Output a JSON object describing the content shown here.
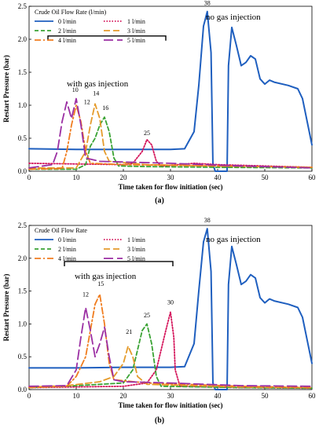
{
  "chart_data": [
    {
      "type": "line",
      "panel_label": "(a)",
      "legend_title": "Crude Oil Flow Rate (l/min)",
      "xlabel": "Time taken for flow initiation (sec)",
      "ylabel": "Restart Pressure (bar)",
      "xlim": [
        0,
        60
      ],
      "ylim": [
        0,
        2.5
      ],
      "xticks": [
        "0",
        "10",
        "20",
        "30",
        "40",
        "50",
        "60"
      ],
      "yticks": [
        "0.0",
        "0.5",
        "1.0",
        "1.5",
        "2.0",
        "2.5"
      ],
      "grid": false,
      "legend_position": "top-left",
      "annotations": {
        "no_gas": "no gas injection",
        "with_gas": "with gas injection"
      },
      "peak_labels": [
        {
          "text": "38",
          "x": 37.8,
          "y": 2.52
        },
        {
          "text": "10",
          "x": 9.8,
          "y": 1.2
        },
        {
          "text": "12",
          "x": 12.3,
          "y": 1.02
        },
        {
          "text": "14",
          "x": 14.2,
          "y": 1.15
        },
        {
          "text": "16",
          "x": 16.2,
          "y": 0.93
        },
        {
          "text": "25",
          "x": 25.0,
          "y": 0.55
        }
      ],
      "series": [
        {
          "name": "0 l/min",
          "color": "#1f5fbf",
          "dash": "solid",
          "points": [
            [
              0,
              0.34
            ],
            [
              10,
              0.33
            ],
            [
              20,
              0.33
            ],
            [
              30,
              0.33
            ],
            [
              33,
              0.34
            ],
            [
              35,
              0.6
            ],
            [
              36,
              1.3
            ],
            [
              37,
              2.2
            ],
            [
              37.8,
              2.42
            ],
            [
              38.6,
              1.8
            ],
            [
              39,
              0.1
            ],
            [
              39.5,
              0.0
            ],
            [
              42,
              0.0
            ],
            [
              42.3,
              1.6
            ],
            [
              43,
              2.18
            ],
            [
              44,
              1.9
            ],
            [
              45,
              1.6
            ],
            [
              46,
              1.65
            ],
            [
              47,
              1.75
            ],
            [
              48,
              1.7
            ],
            [
              49,
              1.4
            ],
            [
              50,
              1.32
            ],
            [
              51,
              1.38
            ],
            [
              52,
              1.35
            ],
            [
              55,
              1.3
            ],
            [
              57,
              1.25
            ],
            [
              58,
              1.1
            ],
            [
              59,
              0.75
            ],
            [
              60,
              0.4
            ]
          ]
        },
        {
          "name": "1 l/min",
          "color": "#d4145a",
          "dash": "dot",
          "points": [
            [
              0,
              0.12
            ],
            [
              20,
              0.1
            ],
            [
              22,
              0.12
            ],
            [
              24,
              0.3
            ],
            [
              25,
              0.48
            ],
            [
              26,
              0.4
            ],
            [
              27,
              0.15
            ],
            [
              28,
              0.08
            ],
            [
              35,
              0.12
            ],
            [
              40,
              0.1
            ],
            [
              50,
              0.08
            ],
            [
              60,
              0.06
            ]
          ]
        },
        {
          "name": "2 l/min",
          "color": "#3aa334",
          "dash": "dash",
          "points": [
            [
              0,
              0.03
            ],
            [
              10,
              0.03
            ],
            [
              12,
              0.1
            ],
            [
              13,
              0.38
            ],
            [
              14,
              0.5
            ],
            [
              15,
              0.7
            ],
            [
              16,
              0.82
            ],
            [
              17,
              0.6
            ],
            [
              18,
              0.2
            ],
            [
              19,
              0.08
            ],
            [
              25,
              0.07
            ],
            [
              40,
              0.06
            ],
            [
              60,
              0.05
            ]
          ]
        },
        {
          "name": "3 l/min",
          "color": "#e59b2c",
          "dash": "longdash",
          "points": [
            [
              0,
              0.05
            ],
            [
              10,
              0.05
            ],
            [
              12,
              0.3
            ],
            [
              13,
              0.7
            ],
            [
              14,
              1.02
            ],
            [
              15,
              0.8
            ],
            [
              16,
              0.3
            ],
            [
              17,
              0.15
            ],
            [
              25,
              0.1
            ],
            [
              40,
              0.08
            ],
            [
              60,
              0.06
            ]
          ]
        },
        {
          "name": "4 l/min",
          "color": "#f07d20",
          "dash": "dashdot",
          "points": [
            [
              0,
              0.03
            ],
            [
              7,
              0.04
            ],
            [
              8,
              0.3
            ],
            [
              9,
              0.7
            ],
            [
              10,
              1.0
            ],
            [
              11,
              0.75
            ],
            [
              12,
              0.3
            ],
            [
              13,
              0.12
            ],
            [
              20,
              0.1
            ],
            [
              40,
              0.08
            ],
            [
              60,
              0.06
            ]
          ]
        },
        {
          "name": "5 l/min",
          "color": "#9b2fa3",
          "dash": "bigdash",
          "points": [
            [
              0,
              0.05
            ],
            [
              5,
              0.1
            ],
            [
              6,
              0.3
            ],
            [
              7,
              0.75
            ],
            [
              8,
              1.05
            ],
            [
              9,
              0.8
            ],
            [
              10,
              1.1
            ],
            [
              11,
              0.7
            ],
            [
              12,
              0.2
            ],
            [
              15,
              0.15
            ],
            [
              30,
              0.12
            ],
            [
              45,
              0.08
            ],
            [
              60,
              0.05
            ]
          ]
        }
      ]
    },
    {
      "type": "line",
      "panel_label": "(b)",
      "legend_title": "Crude Oil Flow Rate",
      "xlabel": "Time taken for flow initiation (sec)",
      "ylabel": "Restart Pressure (bar)",
      "xlim": [
        0,
        60
      ],
      "ylim": [
        0,
        2.5
      ],
      "xticks": [
        "0",
        "10",
        "20",
        "30",
        "40",
        "50",
        "60"
      ],
      "yticks": [
        "0.0",
        "0.5",
        "1.0",
        "1.5",
        "2.0",
        "2.5"
      ],
      "grid": false,
      "legend_position": "top-left",
      "annotations": {
        "no_gas": "no gas injection",
        "with_gas": "with gas injection"
      },
      "peak_labels": [
        {
          "text": "38",
          "x": 37.8,
          "y": 2.55
        },
        {
          "text": "12",
          "x": 12.0,
          "y": 1.42
        },
        {
          "text": "15",
          "x": 15.2,
          "y": 1.58
        },
        {
          "text": "21",
          "x": 21.2,
          "y": 0.85
        },
        {
          "text": "25",
          "x": 25.0,
          "y": 1.1
        },
        {
          "text": "30",
          "x": 30.0,
          "y": 1.3
        }
      ],
      "series": [
        {
          "name": "0 l/min",
          "color": "#1f5fbf",
          "dash": "solid",
          "points": [
            [
              0,
              0.33
            ],
            [
              10,
              0.33
            ],
            [
              20,
              0.34
            ],
            [
              30,
              0.34
            ],
            [
              33,
              0.35
            ],
            [
              35,
              0.7
            ],
            [
              36,
              1.5
            ],
            [
              37,
              2.25
            ],
            [
              37.8,
              2.45
            ],
            [
              38.6,
              1.8
            ],
            [
              39,
              0.1
            ],
            [
              39.5,
              0.0
            ],
            [
              42,
              0.0
            ],
            [
              42.3,
              1.6
            ],
            [
              43,
              2.18
            ],
            [
              44,
              1.9
            ],
            [
              45,
              1.6
            ],
            [
              46,
              1.65
            ],
            [
              47,
              1.75
            ],
            [
              48,
              1.7
            ],
            [
              49,
              1.4
            ],
            [
              50,
              1.32
            ],
            [
              51,
              1.38
            ],
            [
              52,
              1.35
            ],
            [
              55,
              1.3
            ],
            [
              57,
              1.25
            ],
            [
              58,
              1.1
            ],
            [
              59,
              0.75
            ],
            [
              60,
              0.4
            ]
          ]
        },
        {
          "name": "1 l/min",
          "color": "#d4145a",
          "dash": "dot",
          "points": [
            [
              0,
              0.03
            ],
            [
              20,
              0.05
            ],
            [
              25,
              0.1
            ],
            [
              27,
              0.3
            ],
            [
              28,
              0.6
            ],
            [
              29,
              0.9
            ],
            [
              30,
              1.18
            ],
            [
              30.7,
              0.8
            ],
            [
              31,
              0.3
            ],
            [
              32,
              0.05
            ],
            [
              45,
              0.03
            ],
            [
              60,
              0.02
            ]
          ]
        },
        {
          "name": "2 l/min",
          "color": "#3aa334",
          "dash": "dash",
          "points": [
            [
              0,
              0.03
            ],
            [
              10,
              0.06
            ],
            [
              20,
              0.1
            ],
            [
              22,
              0.3
            ],
            [
              23,
              0.6
            ],
            [
              24,
              0.9
            ],
            [
              25,
              1.0
            ],
            [
              26,
              0.7
            ],
            [
              27,
              0.2
            ],
            [
              28,
              0.05
            ],
            [
              45,
              0.03
            ],
            [
              60,
              0.02
            ]
          ]
        },
        {
          "name": "3 l/min",
          "color": "#e59b2c",
          "dash": "longdash",
          "points": [
            [
              0,
              0.04
            ],
            [
              8,
              0.06
            ],
            [
              15,
              0.12
            ],
            [
              18,
              0.2
            ],
            [
              20,
              0.4
            ],
            [
              21,
              0.66
            ],
            [
              22,
              0.5
            ],
            [
              23,
              0.2
            ],
            [
              25,
              0.08
            ],
            [
              45,
              0.04
            ],
            [
              60,
              0.03
            ]
          ]
        },
        {
          "name": "4 l/min",
          "color": "#f07d20",
          "dash": "dashdot",
          "points": [
            [
              0,
              0.03
            ],
            [
              8,
              0.05
            ],
            [
              10,
              0.2
            ],
            [
              12,
              0.5
            ],
            [
              13,
              0.9
            ],
            [
              14,
              1.3
            ],
            [
              15,
              1.45
            ],
            [
              16,
              1.0
            ],
            [
              17,
              0.4
            ],
            [
              18,
              0.15
            ],
            [
              25,
              0.1
            ],
            [
              45,
              0.05
            ],
            [
              60,
              0.03
            ]
          ]
        },
        {
          "name": "5 l/min",
          "color": "#9b2fa3",
          "dash": "bigdash",
          "points": [
            [
              0,
              0.05
            ],
            [
              8,
              0.06
            ],
            [
              10,
              0.3
            ],
            [
              11,
              0.8
            ],
            [
              12,
              1.25
            ],
            [
              13,
              0.9
            ],
            [
              14,
              0.5
            ],
            [
              15,
              0.7
            ],
            [
              16,
              0.95
            ],
            [
              17,
              0.5
            ],
            [
              18,
              0.15
            ],
            [
              20,
              0.12
            ],
            [
              30,
              0.1
            ],
            [
              45,
              0.06
            ],
            [
              60,
              0.05
            ]
          ]
        }
      ]
    }
  ]
}
